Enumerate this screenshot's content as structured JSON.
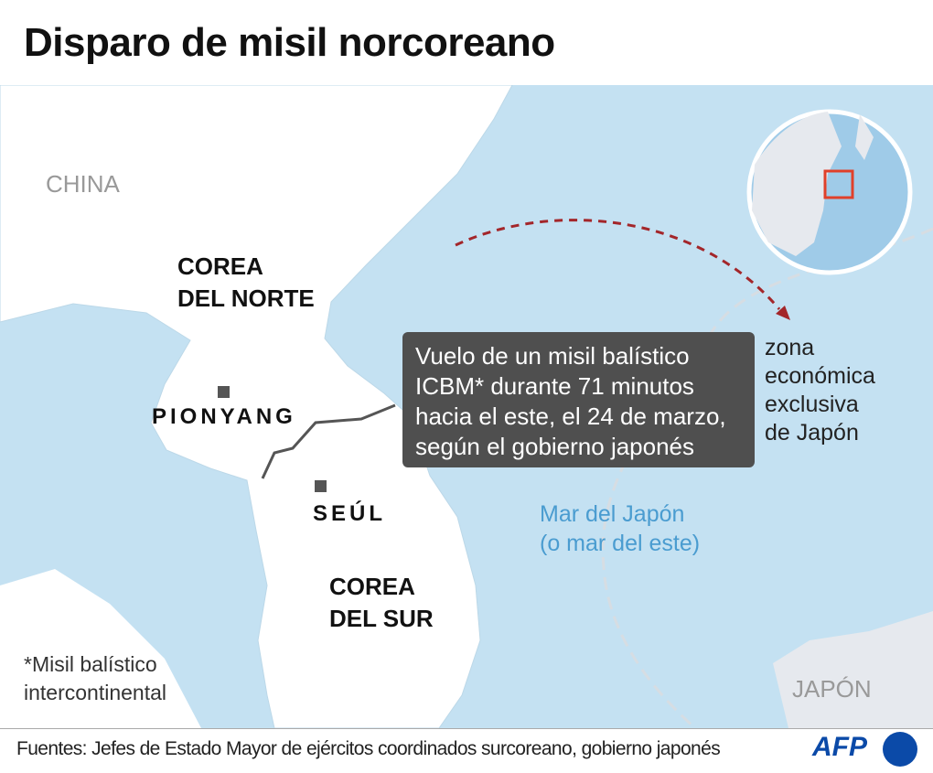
{
  "title": "Disparo de misil norcoreano",
  "labels": {
    "china": "CHINA",
    "nk_1": "COREA",
    "nk_2": "DEL NORTE",
    "sk_1": "COREA",
    "sk_2": "DEL SUR",
    "pyongyang": "PIONYANG",
    "seoul": "SEÚL",
    "japan": "JAPÓN"
  },
  "callout": "Vuelo de un misil balístico ICBM* durante 71 minutos hacia el este, el 24 de marzo, según el gobierno japonés",
  "zee": [
    "zona",
    "económica",
    "exclusiva",
    "de Japón"
  ],
  "sea": [
    "Mar del Japón",
    "(o mar del este)"
  ],
  "note": [
    "*Misil balístico",
    "intercontinental"
  ],
  "footer": {
    "sources": "Fuentes: Jefes de Estado Mayor de ejércitos coordinados surcoreano, gobierno japonés",
    "logo": "AFP"
  },
  "colors": {
    "sea": "#c4e1f2",
    "land": "#ffffff",
    "japan": "#e6e9ee",
    "trajectory": "#a3262a",
    "callout": "#4f4f4f",
    "locator_box": "#e0402a"
  }
}
